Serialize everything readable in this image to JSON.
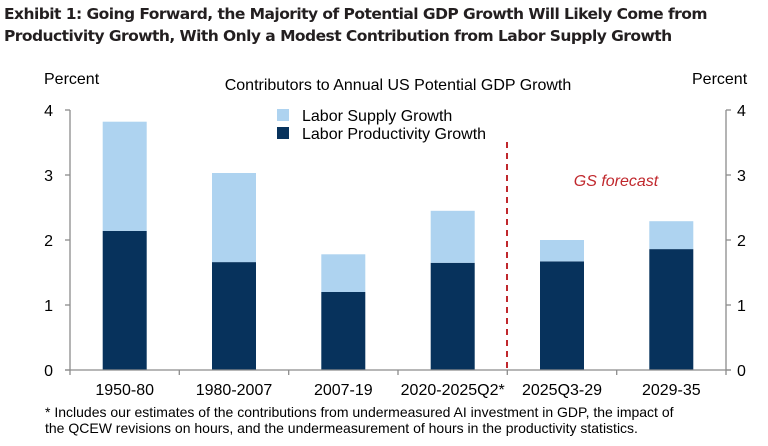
{
  "exhibit": {
    "title_line1": "Exhibit 1: Going Forward, the Majority of Potential GDP Growth Will Likely Come from",
    "title_line2": "Productivity Growth, With Only a Modest Contribution from Labor Supply Growth"
  },
  "footnote": {
    "line1": "* Includes our estimates of the contributions from undermeasured AI investment in GDP, the impact of",
    "line2": "the QCEW revisions on hours, and the undermeasurement of hours in the productivity statistics."
  },
  "chart_data": {
    "type": "bar",
    "stacked": true,
    "title": "Contributors to Annual US Potential GDP Growth",
    "xlabel": "",
    "ylabel_left": "Percent",
    "ylabel_right": "Percent",
    "ylim": [
      0,
      4
    ],
    "yticks": [
      "0",
      "1",
      "2",
      "3",
      "4"
    ],
    "grid": false,
    "legend_position": "top-center",
    "categories": [
      "1950-80",
      "1980-2007",
      "2007-19",
      "2020-2025Q2*",
      "2025Q3-29",
      "2029-35"
    ],
    "series": [
      {
        "name": "Labor Productivity Growth",
        "color": "#07325c",
        "values": [
          2.14,
          1.66,
          1.2,
          1.65,
          1.67,
          1.86
        ]
      },
      {
        "name": "Labor Supply Growth",
        "color": "#aed3f0",
        "values": [
          1.68,
          1.37,
          0.58,
          0.8,
          0.33,
          0.43
        ]
      }
    ],
    "legend_order": [
      "Labor Supply Growth",
      "Labor Productivity Growth"
    ],
    "annotations": [
      {
        "text": "GS forecast",
        "color": "#c0282d",
        "style": "italic",
        "type": "divider-label",
        "between": [
          "2020-2025Q2*",
          "2025Q3-29"
        ]
      }
    ],
    "divider_color": "#c0282d",
    "axis_color": "#8c8c8c"
  }
}
